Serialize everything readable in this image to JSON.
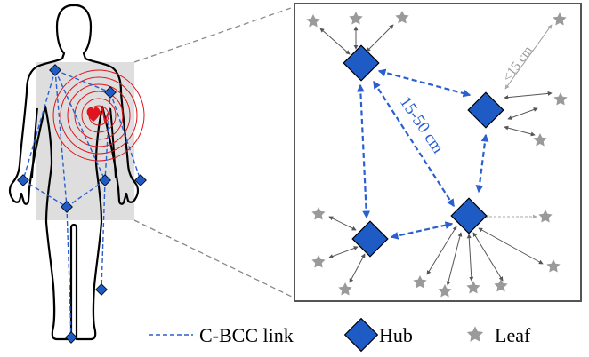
{
  "diagram": {
    "distance_long": "15-50 cm",
    "distance_short": "<15 cm"
  },
  "legend": {
    "link_label": "C-BCC link",
    "hub_label": "Hub",
    "leaf_label": "Leaf"
  },
  "colors": {
    "hub": "#1f5bc4",
    "hub_stroke": "#000000",
    "link": "#2a5fd0",
    "leaf": "#9a9a9a",
    "heart": "#e0141c",
    "ring": "#e0141c",
    "torso_box": "#dedede",
    "panel_border": "#555555"
  }
}
